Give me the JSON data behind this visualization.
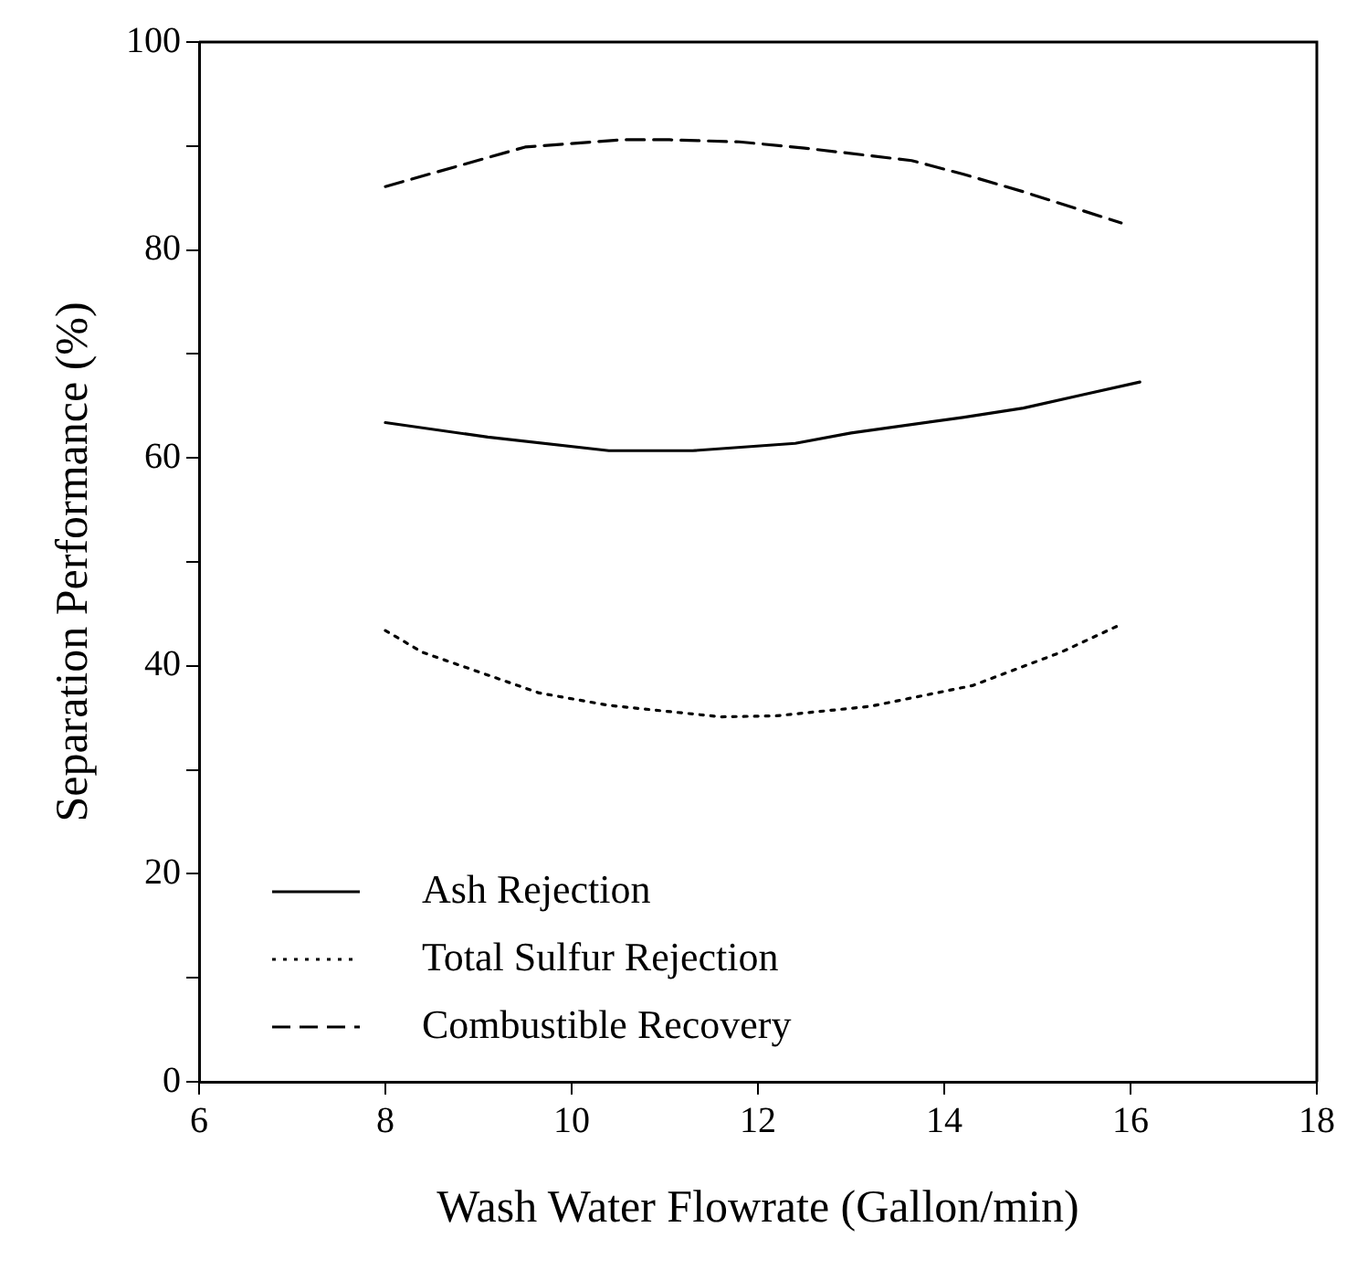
{
  "chart_data": {
    "type": "line",
    "xlabel": "Wash Water Flowrate (Gallon/min)",
    "ylabel": "Separation Performance (%)",
    "xlim": [
      6,
      18
    ],
    "xticks": [
      6,
      8,
      10,
      12,
      14,
      16,
      18
    ],
    "ylim": [
      0,
      100
    ],
    "yticks": [
      0,
      {
        "value": 10,
        "label": null
      },
      20,
      {
        "value": 30,
        "label": null
      },
      40,
      {
        "value": 50,
        "label": null
      },
      60,
      {
        "value": 70,
        "label": null
      },
      80,
      {
        "value": 90,
        "label": null
      },
      100
    ],
    "grid": false,
    "legend": "bottom left",
    "marker": "none",
    "series": [
      {
        "name": "Ash Rejection",
        "color": "#000000",
        "line_style": "solid",
        "x": [
          8,
          9.1,
          10.4,
          11.3,
          12.4,
          13,
          14.2,
          14.85,
          15.5,
          16.1
        ],
        "values": [
          63.4,
          62,
          60.7,
          60.7,
          61.4,
          62.4,
          63.9,
          64.8,
          66.1,
          67.3
        ]
      },
      {
        "name": "Total Sulfur Rejection",
        "color": "#000000",
        "line_style": "dotted",
        "x": [
          8,
          8.4,
          9.65,
          10.4,
          11.6,
          12.2,
          13.2,
          14.3,
          15.25,
          15.9
        ],
        "values": [
          43.4,
          41.3,
          37.4,
          36.2,
          35.1,
          35.2,
          36.1,
          38.1,
          41.3,
          44
        ]
      },
      {
        "name": "Combustible Recovery",
        "color": "#000000",
        "line_style": "dashed",
        "x": [
          8,
          9.5,
          10.55,
          11.05,
          11.8,
          12.5,
          13.65,
          14.2,
          14.85,
          15.9
        ],
        "values": [
          86.1,
          89.9,
          90.6,
          90.6,
          90.4,
          89.8,
          88.6,
          87.3,
          85.6,
          82.6
        ]
      }
    ]
  }
}
